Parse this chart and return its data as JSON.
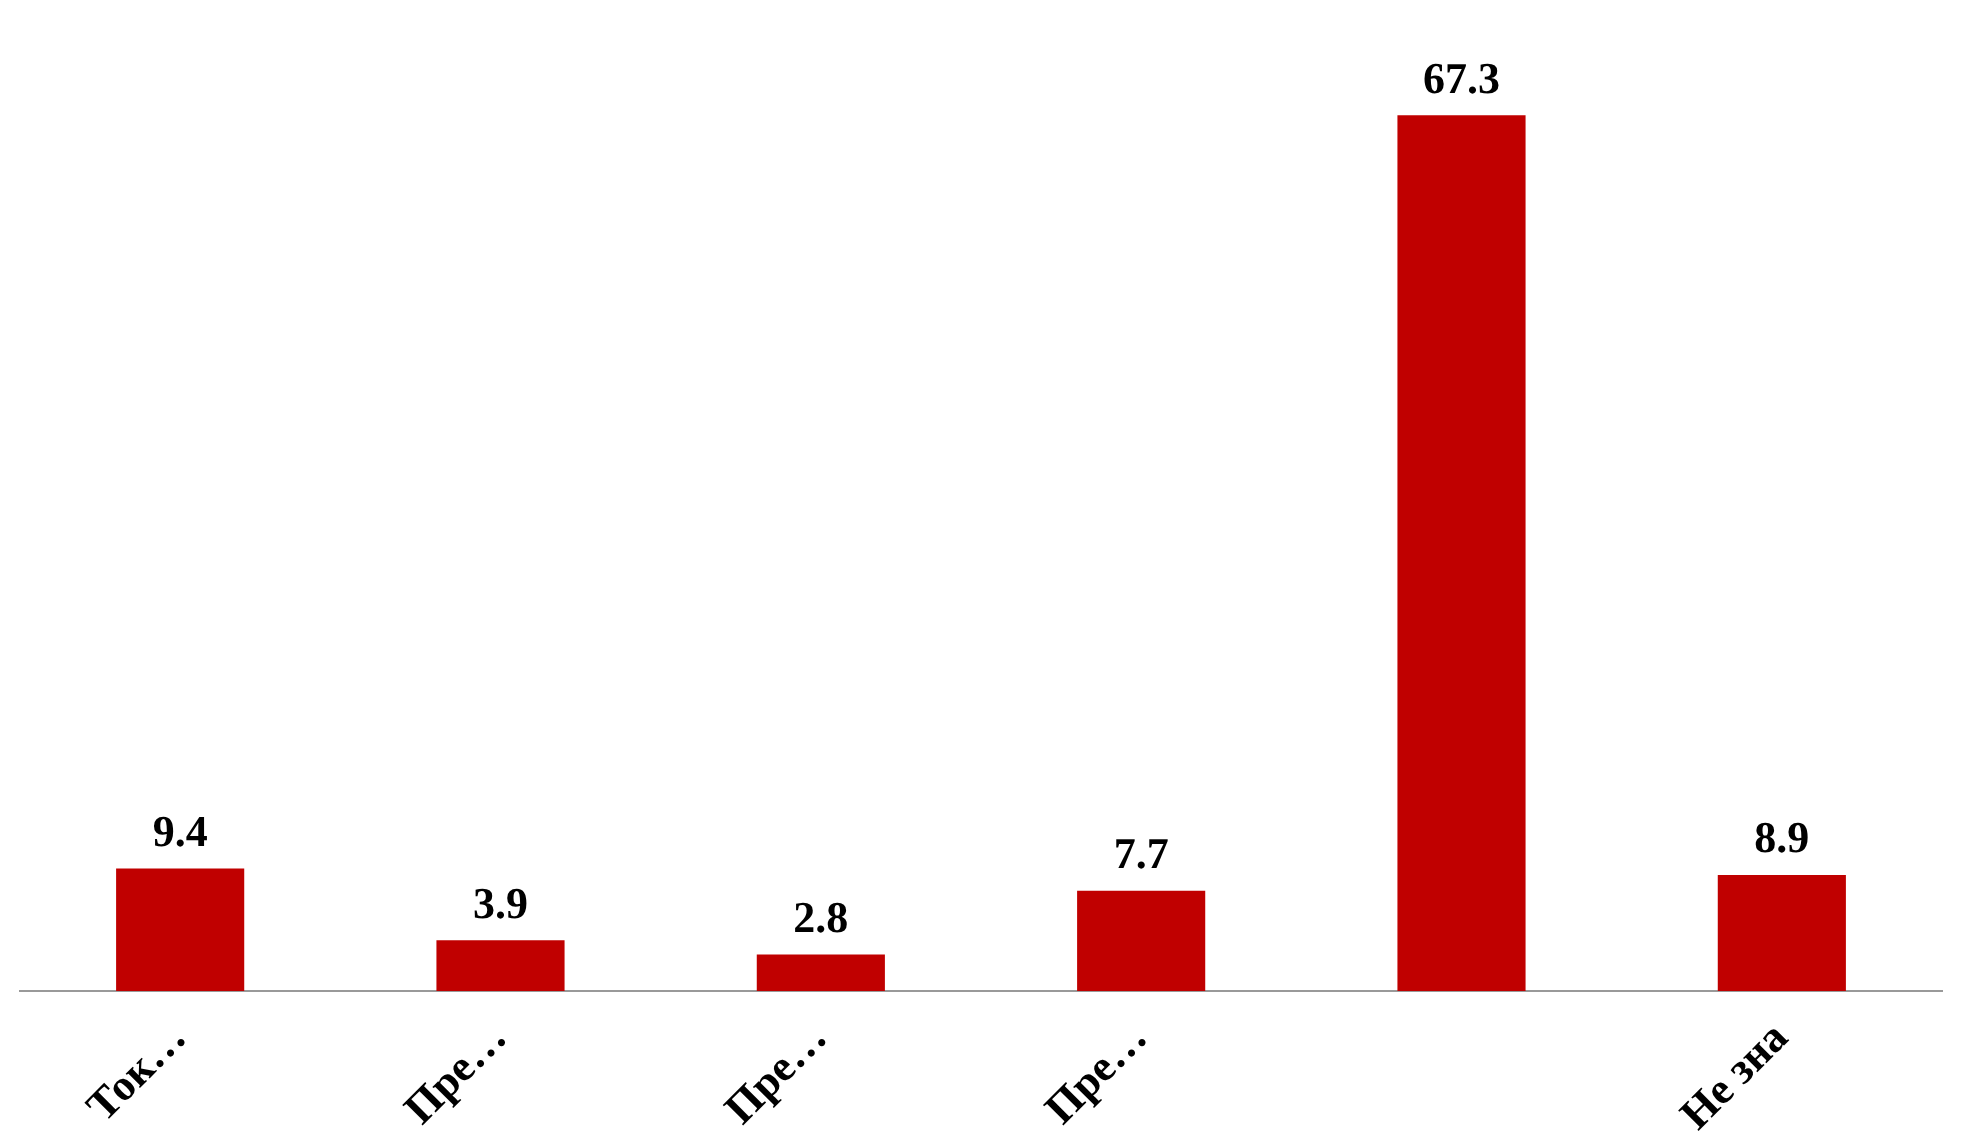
{
  "chart_data": {
    "type": "bar",
    "categories": [
      "Ток…",
      "Пре…",
      "Пре…",
      "Пре…",
      null,
      "Не зна"
    ],
    "values": [
      9.4,
      3.9,
      2.8,
      7.7,
      67.3,
      8.9
    ],
    "color": "#c00000",
    "data_labels": true,
    "grid": false,
    "legend": false
  }
}
